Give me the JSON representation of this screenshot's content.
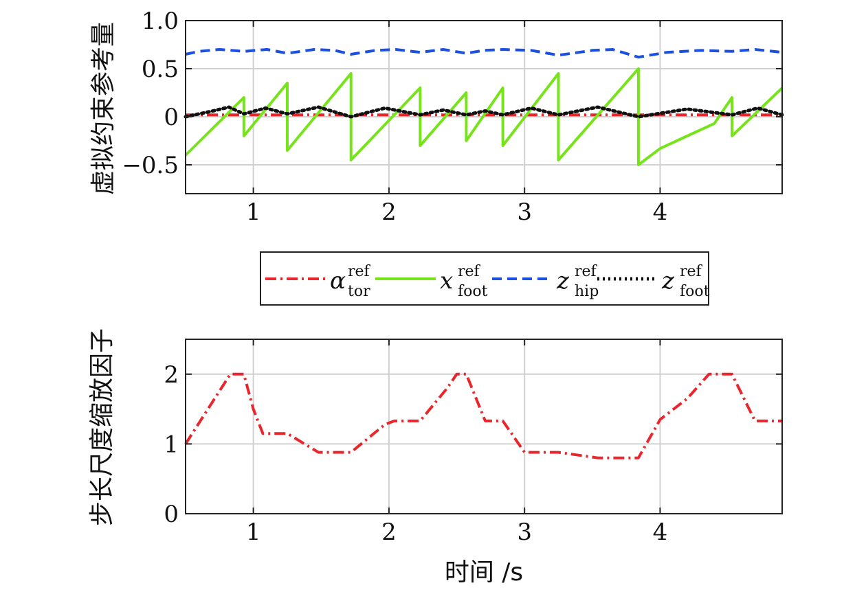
{
  "chart_data": [
    {
      "type": "line",
      "ylabel": "虚拟约束参考量",
      "xlim": [
        0.5,
        4.9
      ],
      "ylim": [
        -0.8,
        1.0
      ],
      "x_ticks": [
        1,
        2,
        3,
        4
      ],
      "x_tick_labels": [
        "1",
        "2",
        "3",
        "4"
      ],
      "y_ticks": [
        1.0,
        0.5,
        0,
        -0.5
      ],
      "y_tick_labels": [
        "1.0",
        "0.5",
        "0",
        "−0.5"
      ],
      "grid": true,
      "legend": {
        "placement": "below",
        "entries": [
          {
            "main": "α",
            "sup": "ref",
            "sub": "tor"
          },
          {
            "main": "x",
            "sup": "ref",
            "sub": "foot"
          },
          {
            "main": "z",
            "sup": "ref",
            "sub": "hip"
          },
          {
            "main": "z",
            "sup": "ref",
            "sub": "foot"
          }
        ]
      },
      "series": [
        {
          "color": "#e8262b",
          "dash": "dashdot",
          "x": [
            0.5,
            4.9
          ],
          "y": [
            0.02,
            0.02
          ]
        },
        {
          "color": "#77e31b",
          "dash": "solid",
          "x": [
            0.5,
            0.93,
            0.93,
            1.25,
            1.25,
            1.72,
            1.72,
            2.23,
            2.23,
            2.57,
            2.57,
            2.84,
            2.84,
            3.25,
            3.25,
            3.84,
            3.84,
            4.0,
            4.2,
            4.4,
            4.53,
            4.53,
            4.9
          ],
          "y": [
            -0.4,
            0.2,
            -0.2,
            0.35,
            -0.35,
            0.45,
            -0.45,
            0.3,
            -0.3,
            0.25,
            -0.25,
            0.3,
            -0.3,
            0.45,
            -0.45,
            0.5,
            -0.5,
            -0.33,
            -0.2,
            -0.07,
            0.2,
            -0.2,
            0.3
          ]
        },
        {
          "color": "#1a4fe0",
          "dash": "dashed",
          "x": [
            0.5,
            0.6,
            0.75,
            0.93,
            1.1,
            1.25,
            1.45,
            1.6,
            1.72,
            1.9,
            2.05,
            2.23,
            2.4,
            2.57,
            2.7,
            2.84,
            3.05,
            3.25,
            3.5,
            3.65,
            3.84,
            4.05,
            4.3,
            4.53,
            4.7,
            4.9
          ],
          "y": [
            0.65,
            0.68,
            0.7,
            0.68,
            0.7,
            0.66,
            0.7,
            0.69,
            0.65,
            0.69,
            0.7,
            0.67,
            0.7,
            0.66,
            0.69,
            0.7,
            0.69,
            0.64,
            0.69,
            0.7,
            0.62,
            0.67,
            0.69,
            0.68,
            0.7,
            0.67
          ]
        },
        {
          "color": "#111111",
          "dash": "dotted",
          "x": [
            0.5,
            0.7,
            0.82,
            0.93,
            1.09,
            1.25,
            1.48,
            1.72,
            1.97,
            2.23,
            2.4,
            2.57,
            2.71,
            2.84,
            3.05,
            3.25,
            3.54,
            3.84,
            4.2,
            4.53,
            4.72,
            4.9
          ],
          "y": [
            0.0,
            0.06,
            0.1,
            0.03,
            0.09,
            0.03,
            0.1,
            0.0,
            0.09,
            0.02,
            0.07,
            0.02,
            0.06,
            0.02,
            0.09,
            0.02,
            0.1,
            0.0,
            0.08,
            0.02,
            0.09,
            0.02
          ]
        }
      ]
    },
    {
      "type": "line",
      "ylabel": "步长尺度缩放因子",
      "xlabel": "时间 /s",
      "xlim": [
        0.5,
        4.9
      ],
      "ylim": [
        0,
        2.5
      ],
      "x_ticks": [
        1,
        2,
        3,
        4
      ],
      "x_tick_labels": [
        "1",
        "2",
        "3",
        "4"
      ],
      "y_ticks": [
        2,
        1,
        0
      ],
      "y_tick_labels": [
        "2",
        "1",
        "0"
      ],
      "grid": true,
      "series": [
        {
          "color": "#e8262b",
          "dash": "dashdot",
          "x": [
            0.5,
            0.83,
            0.93,
            1.0,
            1.07,
            1.25,
            1.48,
            1.72,
            1.97,
            2.04,
            2.23,
            2.43,
            2.5,
            2.57,
            2.71,
            2.84,
            3.0,
            3.25,
            3.54,
            3.84,
            4.0,
            4.2,
            4.36,
            4.53,
            4.7,
            4.9
          ],
          "y": [
            1.0,
            2.0,
            2.0,
            1.5,
            1.15,
            1.15,
            0.88,
            0.88,
            1.28,
            1.33,
            1.33,
            1.8,
            2.0,
            2.0,
            1.33,
            1.33,
            0.88,
            0.88,
            0.8,
            0.8,
            1.35,
            1.65,
            2.0,
            2.0,
            1.33,
            1.33
          ]
        }
      ]
    }
  ]
}
